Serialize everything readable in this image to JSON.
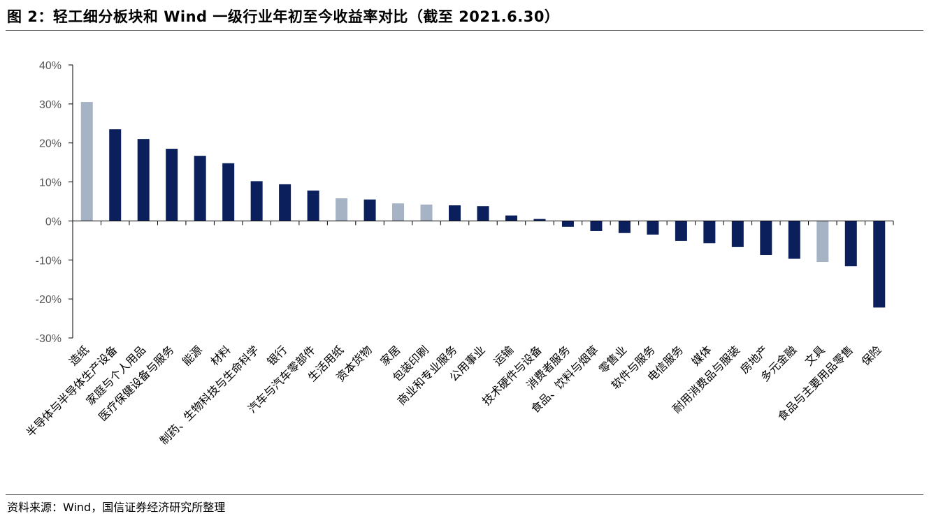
{
  "header": {
    "title": "图 2：轻工细分板块和 Wind 一级行业年初至今收益率对比（截至 2021.6.30）"
  },
  "footer": {
    "source": "资料来源：Wind，国信证券经济研究所整理"
  },
  "colors": {
    "highlight": "#A5B3C4",
    "industry": "#0A1F5C",
    "axis": "#000000",
    "tick_label": "#595959"
  },
  "chart_data": {
    "type": "bar",
    "title": "",
    "xlabel": "",
    "ylabel": "",
    "ylim": [
      -30,
      40
    ],
    "yticks": [
      40,
      30,
      20,
      10,
      0,
      -10,
      -20,
      -30
    ],
    "ytick_labels": [
      "40%",
      "30%",
      "20%",
      "10%",
      "0%",
      "-10%",
      "-20%",
      "-30%"
    ],
    "grid": false,
    "legend": "none",
    "categories": [
      "造纸",
      "半导体与半导体生产设备",
      "家庭与个人用品",
      "医疗保健设备与服务",
      "能源",
      "材料",
      "制药、生物科技与生命科学",
      "银行",
      "汽车与汽车零部件",
      "生活用纸",
      "资本货物",
      "家居",
      "包装印刷",
      "商业和专业服务",
      "公用事业",
      "运输",
      "技术硬件与设备",
      "消费者服务",
      "食品、饮料与烟草",
      "零售业",
      "软件与服务",
      "电信服务",
      "媒体",
      "耐用消费品与服装",
      "房地产",
      "多元金融",
      "文具",
      "食品与主要用品零售",
      "保险"
    ],
    "display_labels": [
      "造纸",
      "半导体与半导体生产设备",
      "家庭与个人用品",
      "医疗保健设备与服务",
      "能源",
      "材料",
      "制药、生物科技与生命科学",
      "银行",
      "汽车与汽车零部件",
      "生活用纸",
      "资本货物",
      "家居",
      "包装印刷",
      "商业和专业服务",
      "公用事业",
      "运输",
      "技术硬件与设备",
      "消费者服务",
      "食品、饮料与烟草",
      "零售业",
      "软件与服务",
      "电信服务",
      "媒体",
      "耐用消费品与服装",
      "房地产",
      "多元金融",
      "文具",
      "食品与主要用品零售",
      "保险"
    ],
    "values": [
      30.5,
      23.5,
      21.0,
      18.5,
      16.7,
      14.8,
      10.2,
      9.4,
      7.8,
      5.8,
      5.5,
      4.5,
      4.2,
      4.0,
      3.8,
      1.4,
      0.5,
      -1.5,
      -2.6,
      -3.1,
      -3.5,
      -5.1,
      -5.7,
      -6.7,
      -8.7,
      -9.7,
      -10.5,
      -11.6,
      -22.2
    ],
    "highlighted": [
      true,
      false,
      false,
      false,
      false,
      false,
      false,
      false,
      false,
      true,
      false,
      true,
      true,
      false,
      false,
      false,
      false,
      false,
      false,
      false,
      false,
      false,
      false,
      false,
      false,
      false,
      true,
      false,
      false
    ]
  }
}
